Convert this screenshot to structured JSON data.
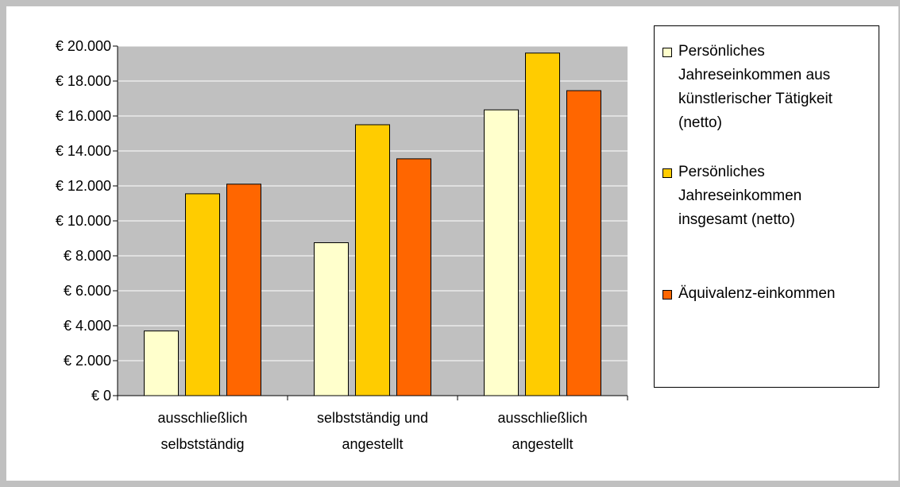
{
  "chart_data": {
    "type": "bar",
    "title": "",
    "xlabel": "",
    "ylabel": "",
    "categories": [
      [
        "ausschließlich",
        "selbstständig"
      ],
      [
        "selbstständig und",
        "angestellt"
      ],
      [
        "ausschließlich",
        "angestellt"
      ]
    ],
    "series": [
      {
        "name": "Persönliches Jahreseinkommen aus künstlerischer Tätigkeit (netto)",
        "legend_lines": [
          "Persönliches",
          "Jahreseinkommen aus",
          "künstlerischer Tätigkeit",
          "(netto)"
        ],
        "color": "#FFFFCC",
        "values": [
          3700,
          8750,
          16350
        ]
      },
      {
        "name": "Persönliches Jahreseinkommen insgesamt (netto)",
        "legend_lines": [
          "Persönliches",
          "Jahreseinkommen",
          "insgesamt (netto)"
        ],
        "color": "#FFCC00",
        "values": [
          11550,
          15500,
          19600
        ]
      },
      {
        "name": "Äquivalenz-einkommen",
        "legend_lines": [
          "Äquivalenz-einkommen"
        ],
        "color": "#FF6600",
        "values": [
          12100,
          13550,
          17450
        ]
      }
    ],
    "ylim": [
      0,
      20000
    ],
    "yticks": [
      0,
      2000,
      4000,
      6000,
      8000,
      10000,
      12000,
      14000,
      16000,
      18000,
      20000
    ],
    "ytick_labels": [
      "€ 0",
      "€ 2.000",
      "€ 4.000",
      "€ 6.000",
      "€ 8.000",
      "€ 10.000",
      "€ 12.000",
      "€ 14.000",
      "€ 16.000",
      "€ 18.000",
      "€ 20.000"
    ],
    "grid": true,
    "plot_background": "#C0C0C0",
    "legend_position": "right"
  }
}
